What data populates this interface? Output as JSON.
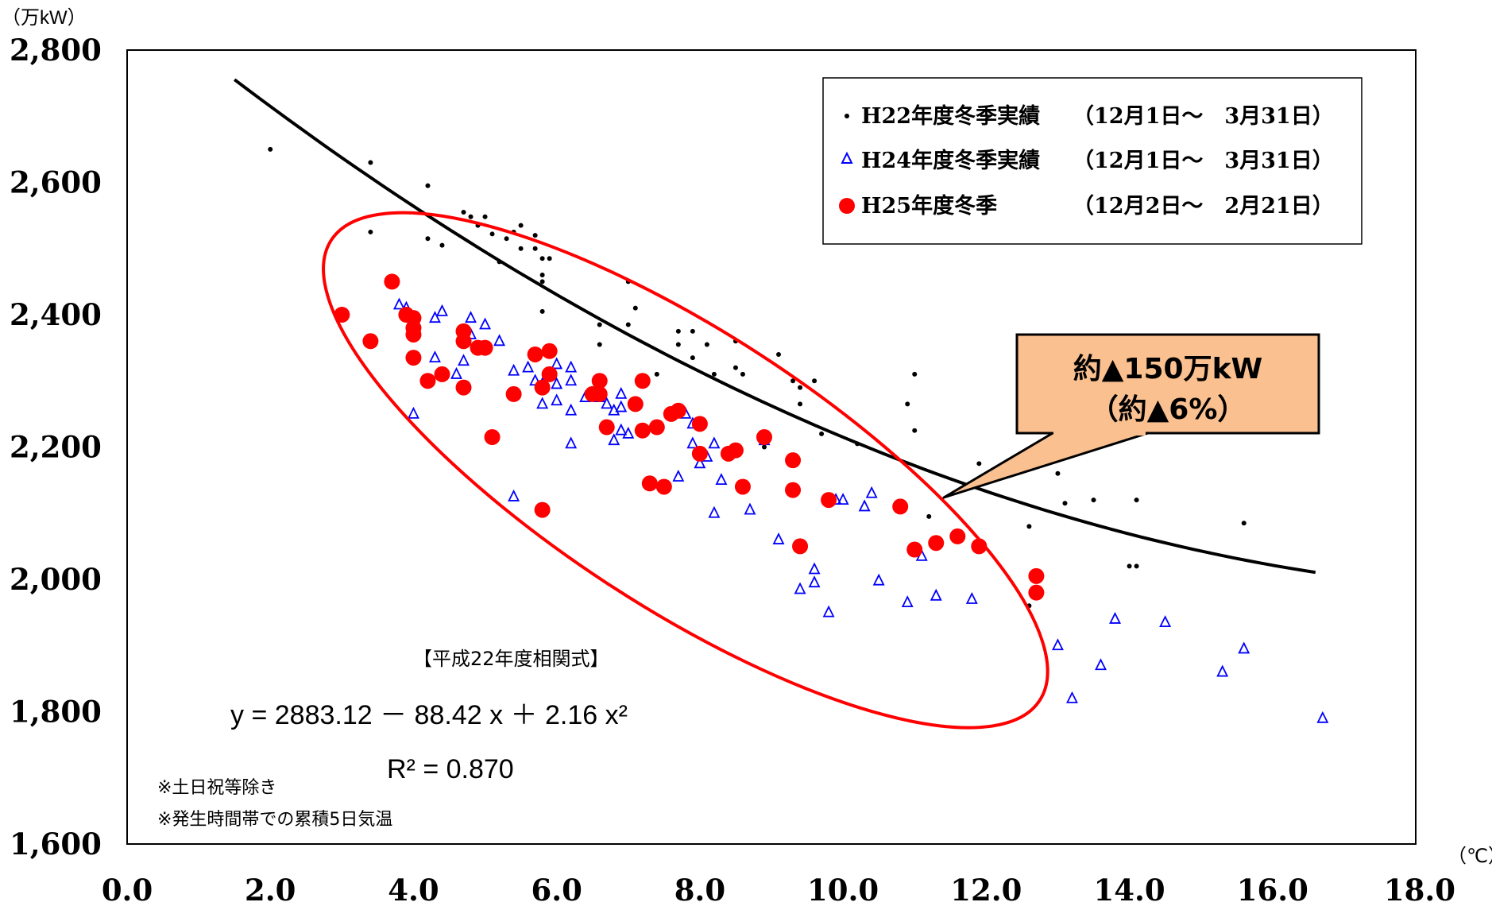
{
  "chart_data": {
    "type": "scatter",
    "y_unit": "（万kW）",
    "x_unit": "（℃）",
    "xlim": [
      0,
      18
    ],
    "ylim": [
      1600,
      2800
    ],
    "x_ticks": [
      "0.0",
      "2.0",
      "4.0",
      "6.0",
      "8.0",
      "10.0",
      "12.0",
      "14.0",
      "16.0",
      "18.0"
    ],
    "y_ticks": [
      "1,600",
      "1,800",
      "2,000",
      "2,200",
      "2,400",
      "2,600",
      "2,800"
    ],
    "legend": {
      "placement": "top-right",
      "entries": [
        {
          "name": "H22年度冬季実績",
          "period": "（12月1日～　3月31日）"
        },
        {
          "name": "H24年度冬季実績",
          "period": "（12月1日～　3月31日）"
        },
        {
          "name": "H25年度冬季",
          "period": "（12月2日～　2月21日）"
        }
      ]
    },
    "series": [
      {
        "name": "H22年度冬季実績",
        "marker": "dot",
        "color": "#000000",
        "points": [
          [
            2.0,
            2650
          ],
          [
            3.4,
            2630
          ],
          [
            3.4,
            2525
          ],
          [
            4.2,
            2595
          ],
          [
            4.2,
            2515
          ],
          [
            4.4,
            2505
          ],
          [
            4.7,
            2555
          ],
          [
            4.8,
            2548
          ],
          [
            4.9,
            2535
          ],
          [
            5.0,
            2548
          ],
          [
            5.1,
            2522
          ],
          [
            5.2,
            2480
          ],
          [
            5.3,
            2515
          ],
          [
            5.4,
            2525
          ],
          [
            5.5,
            2535
          ],
          [
            5.5,
            2500
          ],
          [
            5.7,
            2520
          ],
          [
            5.7,
            2500
          ],
          [
            5.8,
            2485
          ],
          [
            5.8,
            2460
          ],
          [
            5.9,
            2485
          ],
          [
            5.8,
            2450
          ],
          [
            5.8,
            2405
          ],
          [
            6.6,
            2385
          ],
          [
            6.6,
            2355
          ],
          [
            7.0,
            2450
          ],
          [
            7.0,
            2385
          ],
          [
            7.1,
            2410
          ],
          [
            7.4,
            2310
          ],
          [
            7.7,
            2375
          ],
          [
            7.7,
            2355
          ],
          [
            7.9,
            2375
          ],
          [
            7.9,
            2335
          ],
          [
            8.1,
            2355
          ],
          [
            8.2,
            2310
          ],
          [
            8.5,
            2320
          ],
          [
            8.5,
            2360
          ],
          [
            8.6,
            2310
          ],
          [
            8.9,
            2200
          ],
          [
            9.1,
            2340
          ],
          [
            9.3,
            2300
          ],
          [
            9.4,
            2290
          ],
          [
            9.4,
            2265
          ],
          [
            9.6,
            2300
          ],
          [
            9.7,
            2220
          ],
          [
            10.2,
            2205
          ],
          [
            10.9,
            2265
          ],
          [
            11.0,
            2310
          ],
          [
            11.0,
            2225
          ],
          [
            11.2,
            2095
          ],
          [
            11.9,
            2175
          ],
          [
            12.6,
            2080
          ],
          [
            12.6,
            1960
          ],
          [
            13.0,
            2160
          ],
          [
            13.1,
            2115
          ],
          [
            13.5,
            2120
          ],
          [
            14.0,
            2020
          ],
          [
            14.1,
            2020
          ],
          [
            14.1,
            2120
          ],
          [
            15.6,
            2085
          ]
        ]
      },
      {
        "name": "H24年度冬季実績",
        "marker": "triangle",
        "color": "#0000ff",
        "points": [
          [
            3.8,
            2415
          ],
          [
            3.9,
            2410
          ],
          [
            4.0,
            2250
          ],
          [
            4.3,
            2395
          ],
          [
            4.3,
            2335
          ],
          [
            4.4,
            2405
          ],
          [
            4.6,
            2310
          ],
          [
            4.7,
            2330
          ],
          [
            4.8,
            2395
          ],
          [
            4.8,
            2370
          ],
          [
            5.0,
            2385
          ],
          [
            5.2,
            2360
          ],
          [
            5.4,
            2315
          ],
          [
            5.4,
            2125
          ],
          [
            5.6,
            2320
          ],
          [
            5.7,
            2300
          ],
          [
            5.8,
            2265
          ],
          [
            5.8,
            2295
          ],
          [
            5.9,
            2310
          ],
          [
            6.0,
            2325
          ],
          [
            6.0,
            2295
          ],
          [
            6.0,
            2270
          ],
          [
            6.2,
            2320
          ],
          [
            6.2,
            2300
          ],
          [
            6.2,
            2255
          ],
          [
            6.2,
            2205
          ],
          [
            6.4,
            2275
          ],
          [
            6.5,
            2280
          ],
          [
            6.6,
            2275
          ],
          [
            6.7,
            2265
          ],
          [
            6.8,
            2255
          ],
          [
            6.8,
            2210
          ],
          [
            6.9,
            2280
          ],
          [
            6.9,
            2260
          ],
          [
            6.9,
            2225
          ],
          [
            7.0,
            2220
          ],
          [
            7.7,
            2155
          ],
          [
            7.8,
            2250
          ],
          [
            7.9,
            2235
          ],
          [
            7.9,
            2205
          ],
          [
            8.0,
            2175
          ],
          [
            8.1,
            2185
          ],
          [
            8.2,
            2205
          ],
          [
            8.2,
            2100
          ],
          [
            8.3,
            2150
          ],
          [
            8.7,
            2105
          ],
          [
            8.9,
            2210
          ],
          [
            9.1,
            2060
          ],
          [
            9.4,
            1985
          ],
          [
            9.6,
            2015
          ],
          [
            9.6,
            1995
          ],
          [
            9.8,
            1950
          ],
          [
            9.9,
            2120
          ],
          [
            10.0,
            2120
          ],
          [
            10.3,
            2110
          ],
          [
            10.4,
            2130
          ],
          [
            10.5,
            1998
          ],
          [
            10.9,
            1965
          ],
          [
            11.1,
            2035
          ],
          [
            11.3,
            1975
          ],
          [
            11.8,
            1970
          ],
          [
            13.0,
            1900
          ],
          [
            13.2,
            1820
          ],
          [
            13.6,
            1870
          ],
          [
            13.8,
            1940
          ],
          [
            14.5,
            1935
          ],
          [
            15.3,
            1860
          ],
          [
            15.6,
            1895
          ],
          [
            16.7,
            1790
          ]
        ]
      },
      {
        "name": "H25年度冬季",
        "marker": "circle",
        "color": "#ff0000",
        "points": [
          [
            3.0,
            2400
          ],
          [
            3.4,
            2360
          ],
          [
            3.7,
            2450
          ],
          [
            3.9,
            2400
          ],
          [
            4.0,
            2395
          ],
          [
            4.0,
            2380
          ],
          [
            4.0,
            2370
          ],
          [
            4.0,
            2335
          ],
          [
            4.2,
            2300
          ],
          [
            4.4,
            2310
          ],
          [
            4.7,
            2375
          ],
          [
            4.7,
            2360
          ],
          [
            4.7,
            2290
          ],
          [
            4.9,
            2350
          ],
          [
            5.0,
            2350
          ],
          [
            5.1,
            2215
          ],
          [
            5.4,
            2280
          ],
          [
            5.7,
            2340
          ],
          [
            5.8,
            2290
          ],
          [
            5.8,
            2105
          ],
          [
            5.9,
            2345
          ],
          [
            5.9,
            2310
          ],
          [
            6.5,
            2280
          ],
          [
            6.6,
            2300
          ],
          [
            6.6,
            2280
          ],
          [
            6.7,
            2230
          ],
          [
            7.1,
            2265
          ],
          [
            7.2,
            2300
          ],
          [
            7.2,
            2225
          ],
          [
            7.3,
            2145
          ],
          [
            7.4,
            2230
          ],
          [
            7.5,
            2140
          ],
          [
            7.6,
            2250
          ],
          [
            7.7,
            2255
          ],
          [
            8.0,
            2235
          ],
          [
            8.0,
            2190
          ],
          [
            8.4,
            2190
          ],
          [
            8.5,
            2195
          ],
          [
            8.6,
            2140
          ],
          [
            8.9,
            2215
          ],
          [
            9.3,
            2135
          ],
          [
            9.3,
            2180
          ],
          [
            9.4,
            2050
          ],
          [
            9.8,
            2120
          ],
          [
            10.8,
            2110
          ],
          [
            11.0,
            2045
          ],
          [
            11.3,
            2055
          ],
          [
            11.6,
            2065
          ],
          [
            11.9,
            2050
          ],
          [
            12.7,
            2005
          ],
          [
            12.7,
            1980
          ]
        ]
      }
    ],
    "trendline": {
      "series": "H22年度冬季実績",
      "formula": {
        "a": 2883.12,
        "b": -88.42,
        "c": 2.16
      },
      "x_range": [
        1.5,
        16.6
      ]
    },
    "ellipse_highlight": {
      "center": [
        7.8,
        2165
      ],
      "rx_data": 5.9,
      "ry_data": 208,
      "angle_deg": 33,
      "color": "#ff0000"
    }
  },
  "annotations": {
    "equation_title": "【平成22年度相関式】",
    "equation": "y = 2883.12 － 88.42 x ＋ 2.16 x²",
    "r_squared": "R² = 0.870",
    "note_1": "※土日祝等除き",
    "note_2": "※発生時間帯での累積5日気温",
    "callout_line_1": "約▲150万kW",
    "callout_line_2": "（約▲6%）",
    "callout_fill": "#fac090"
  }
}
